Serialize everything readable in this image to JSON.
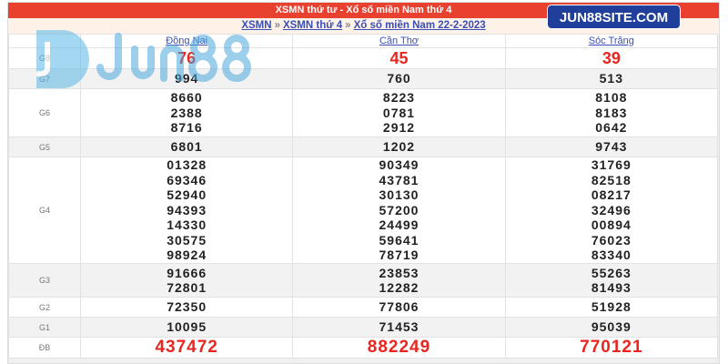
{
  "title": "XSMN thứ tư - Xổ số miền Nam thứ 4",
  "breadcrumb": [
    "XSMN",
    "XSMN thứ 4",
    "Xổ số miền Nam 22-2-2023"
  ],
  "breadcrumb_sep": "»",
  "badge": "JUN88SITE.COM",
  "watermark": "Jun88",
  "provinces": [
    "Đồng Nai",
    "Cần Thơ",
    "Sóc Trăng"
  ],
  "rows": [
    {
      "label": "G8",
      "values": [
        [
          "76"
        ],
        [
          "45"
        ],
        [
          "39"
        ]
      ]
    },
    {
      "label": "G7",
      "values": [
        [
          "994"
        ],
        [
          "760"
        ],
        [
          "513"
        ]
      ]
    },
    {
      "label": "G6",
      "values": [
        [
          "8660",
          "2388",
          "8716"
        ],
        [
          "8223",
          "0781",
          "2912"
        ],
        [
          "8108",
          "8183",
          "0642"
        ]
      ]
    },
    {
      "label": "G5",
      "values": [
        [
          "6801"
        ],
        [
          "1202"
        ],
        [
          "9743"
        ]
      ]
    },
    {
      "label": "G4",
      "values": [
        [
          "01328",
          "69346",
          "52940",
          "94393",
          "14330",
          "30575",
          "98924"
        ],
        [
          "90349",
          "43781",
          "30130",
          "57200",
          "24499",
          "59641",
          "78719"
        ],
        [
          "31769",
          "82518",
          "08217",
          "32496",
          "00894",
          "76023",
          "83340"
        ]
      ]
    },
    {
      "label": "G3",
      "values": [
        [
          "91666",
          "72801"
        ],
        [
          "23853",
          "12282"
        ],
        [
          "55263",
          "81493"
        ]
      ]
    },
    {
      "label": "G2",
      "values": [
        [
          "72350"
        ],
        [
          "77806"
        ],
        [
          "51928"
        ]
      ]
    },
    {
      "label": "G1",
      "values": [
        [
          "10095"
        ],
        [
          "71453"
        ],
        [
          "95039"
        ]
      ]
    },
    {
      "label": "ĐB",
      "values": [
        [
          "437472"
        ],
        [
          "882249"
        ],
        [
          "770121"
        ]
      ]
    }
  ],
  "colors": {
    "header": "#e8412f",
    "prize_red": "#e8261f",
    "badge": "#1f3f9a",
    "link": "#3a4fb5"
  }
}
